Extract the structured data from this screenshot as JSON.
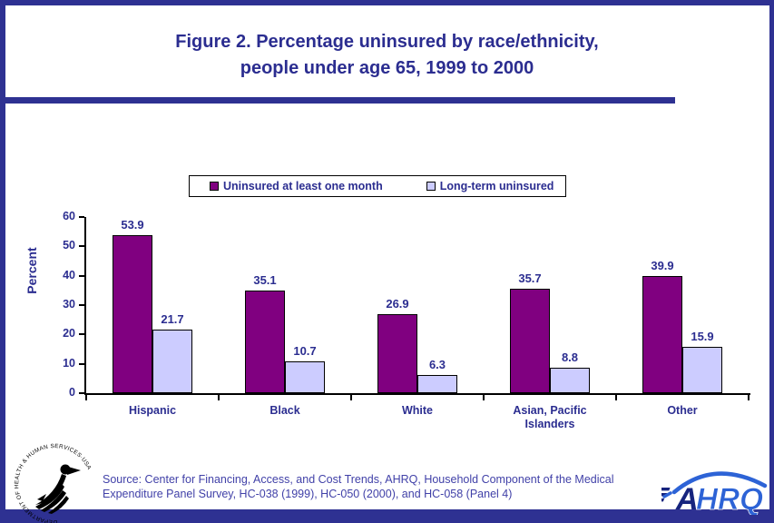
{
  "title": {
    "line1": "Figure 2. Percentage uninsured by race/ethnicity,",
    "line2": "people under age 65, 1999 to 2000"
  },
  "legend": [
    {
      "label": "Uninsured at least one month"
    },
    {
      "label": "Long-term uninsured"
    }
  ],
  "chart_data": {
    "type": "bar",
    "categories": [
      "Hispanic",
      "Black",
      "White",
      "Asian, Pacific Islanders",
      "Other"
    ],
    "series": [
      {
        "name": "Uninsured at least one month",
        "color": "#800080",
        "values": [
          53.9,
          35.1,
          26.9,
          35.7,
          39.9
        ]
      },
      {
        "name": "Long-term uninsured",
        "color": "#CCCCFF",
        "values": [
          21.7,
          10.7,
          6.3,
          8.8,
          15.9
        ]
      }
    ],
    "title": "Figure 2. Percentage uninsured by race/ethnicity, people under age 65, 1999 to 2000",
    "xlabel": "",
    "ylabel": "Percent",
    "ylim": [
      0,
      60
    ],
    "yticks": [
      0,
      10,
      20,
      30,
      40,
      50,
      60
    ],
    "grid": false,
    "legend_position": "top"
  },
  "source": {
    "line1": "Source: Center for Financing, Access, and Cost Trends, AHRQ, Household Component of the Medical",
    "line2": "Expenditure Panel Survey, HC-038 (1999), HC-050 (2000), and HC-058 (Panel 4)"
  },
  "logos": {
    "hhs_text": "DEPARTMENT OF HEALTH & HUMAN SERVICES·USA",
    "ahrq": {
      "a": "A",
      "hrq": "HRQ"
    }
  },
  "colors": {
    "accent": "#2E3192",
    "navy_text": "#2B2D90",
    "source_text": "#4141A8",
    "bar_uninsured_month": "#800080",
    "bar_long_term": "#CCCCFF"
  }
}
